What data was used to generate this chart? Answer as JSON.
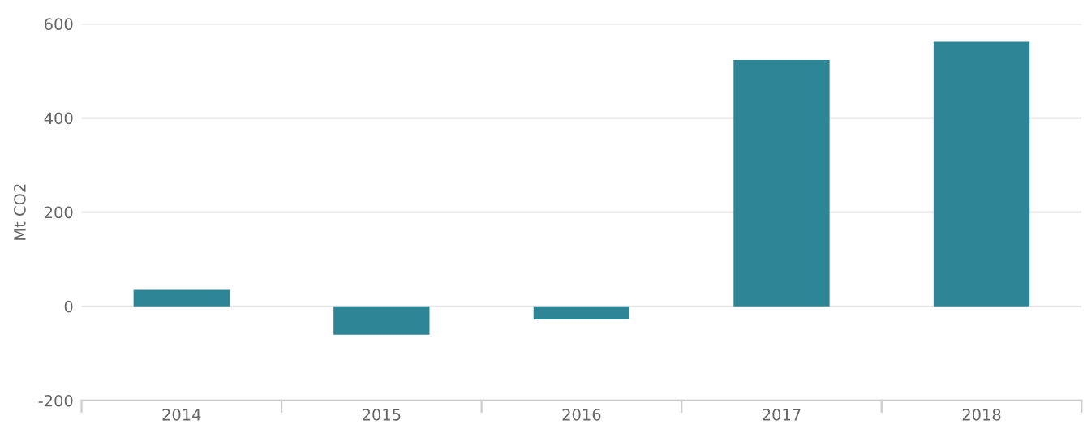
{
  "chart_data": {
    "type": "bar",
    "ylabel": "Mt CO2",
    "categories": [
      "2014",
      "2015",
      "2016",
      "2017",
      "2018"
    ],
    "values": [
      35,
      -60,
      -28,
      523,
      562
    ],
    "color": "#2e8596",
    "ylim": [
      -200,
      600
    ],
    "yticks": [
      -200,
      0,
      200,
      400,
      600
    ],
    "grid": "y"
  }
}
